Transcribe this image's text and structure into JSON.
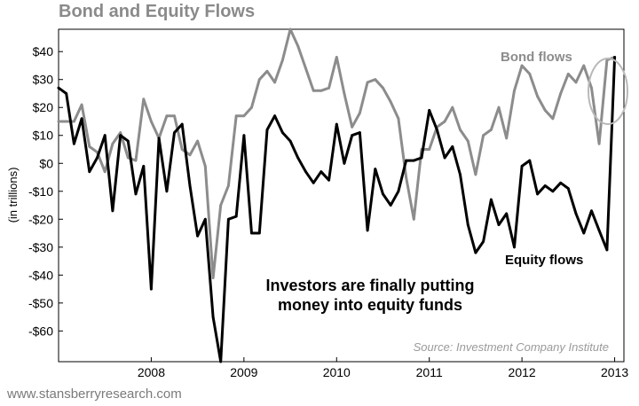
{
  "title": "Bond and Equity Flows",
  "footer": "www.stansberryresearch.com",
  "chart_data": {
    "type": "line",
    "title": "Bond and Equity Flows",
    "ylabel": "(in trillions)",
    "xlabel": "",
    "ylim": [
      -71,
      48
    ],
    "xlim": [
      2007.0,
      2013.1
    ],
    "y_ticks": [
      {
        "value": 40,
        "label": "$40"
      },
      {
        "value": 30,
        "label": "$30"
      },
      {
        "value": 20,
        "label": "$20"
      },
      {
        "value": 10,
        "label": "$10"
      },
      {
        "value": 0,
        "label": "$0"
      },
      {
        "value": -10,
        "label": "-$10"
      },
      {
        "value": -20,
        "label": "-$20"
      },
      {
        "value": -30,
        "label": "-$30"
      },
      {
        "value": -40,
        "label": "-$40"
      },
      {
        "value": -50,
        "label": "-$50"
      },
      {
        "value": -60,
        "label": "-$60"
      }
    ],
    "x_ticks": [
      {
        "value": 2008,
        "label": "2008"
      },
      {
        "value": 2009,
        "label": "2009"
      },
      {
        "value": 2010,
        "label": "2010"
      },
      {
        "value": 2011,
        "label": "2011"
      },
      {
        "value": 2012,
        "label": "2012"
      },
      {
        "value": 2013,
        "label": "2013"
      }
    ],
    "grid": false,
    "series": [
      {
        "name": "Bond flows",
        "color": "#8c8c8c",
        "x": [
          2007.0,
          2007.083,
          2007.167,
          2007.25,
          2007.333,
          2007.417,
          2007.5,
          2007.583,
          2007.667,
          2007.75,
          2007.833,
          2007.917,
          2008.0,
          2008.083,
          2008.167,
          2008.25,
          2008.333,
          2008.417,
          2008.5,
          2008.583,
          2008.667,
          2008.75,
          2008.833,
          2008.917,
          2009.0,
          2009.083,
          2009.167,
          2009.25,
          2009.333,
          2009.417,
          2009.5,
          2009.583,
          2009.667,
          2009.75,
          2009.833,
          2009.917,
          2010.0,
          2010.083,
          2010.167,
          2010.25,
          2010.333,
          2010.417,
          2010.5,
          2010.583,
          2010.667,
          2010.75,
          2010.833,
          2010.917,
          2011.0,
          2011.083,
          2011.167,
          2011.25,
          2011.333,
          2011.417,
          2011.5,
          2011.583,
          2011.667,
          2011.75,
          2011.833,
          2011.917,
          2012.0,
          2012.083,
          2012.167,
          2012.25,
          2012.333,
          2012.417,
          2012.5,
          2012.583,
          2012.667,
          2012.75,
          2012.833,
          2012.917,
          2013.0
        ],
        "values": [
          15,
          15,
          15,
          21,
          6,
          4,
          -3,
          7,
          11,
          2,
          1,
          23,
          15,
          9,
          17,
          17,
          5,
          3,
          8,
          -1,
          -41,
          -15,
          -8,
          17,
          17,
          20,
          30,
          33,
          29,
          37,
          48,
          42,
          34,
          26,
          26,
          27,
          38,
          25,
          13,
          18,
          29,
          30,
          27,
          22,
          16,
          -5,
          -20,
          5,
          5,
          13,
          15,
          20,
          12,
          8,
          -4,
          10,
          12,
          20,
          9,
          26,
          35,
          32,
          24,
          19,
          16,
          25,
          32,
          29,
          35,
          27,
          7,
          37,
          38
        ]
      },
      {
        "name": "Equity flows",
        "color": "#000000",
        "x": [
          2007.0,
          2007.083,
          2007.167,
          2007.25,
          2007.333,
          2007.417,
          2007.5,
          2007.583,
          2007.667,
          2007.75,
          2007.833,
          2007.917,
          2008.0,
          2008.083,
          2008.167,
          2008.25,
          2008.333,
          2008.417,
          2008.5,
          2008.583,
          2008.667,
          2008.75,
          2008.833,
          2008.917,
          2009.0,
          2009.083,
          2009.167,
          2009.25,
          2009.333,
          2009.417,
          2009.5,
          2009.583,
          2009.667,
          2009.75,
          2009.833,
          2009.917,
          2010.0,
          2010.083,
          2010.167,
          2010.25,
          2010.333,
          2010.417,
          2010.5,
          2010.583,
          2010.667,
          2010.75,
          2010.833,
          2010.917,
          2011.0,
          2011.083,
          2011.167,
          2011.25,
          2011.333,
          2011.417,
          2011.5,
          2011.583,
          2011.667,
          2011.75,
          2011.833,
          2011.917,
          2012.0,
          2012.083,
          2012.167,
          2012.25,
          2012.333,
          2012.417,
          2012.5,
          2012.583,
          2012.667,
          2012.75,
          2012.833,
          2012.917,
          2013.0
        ],
        "values": [
          27,
          25,
          7,
          16,
          -3,
          2,
          10,
          -17,
          10,
          8,
          -11,
          -1,
          -45,
          9,
          -10,
          11,
          14,
          -8,
          -26,
          -20,
          -55,
          -71,
          -20,
          -19,
          10,
          -25,
          -25,
          12,
          17,
          11,
          8,
          2,
          -3,
          -7,
          -3,
          -6,
          14,
          0,
          10,
          11,
          -24,
          -2,
          -11,
          -15,
          -10,
          1,
          1,
          2,
          19,
          12,
          2,
          6,
          -4,
          -22,
          -32,
          -28,
          -13,
          -22,
          -18,
          -30,
          -1,
          1,
          -11,
          -8,
          -10,
          -7,
          -9,
          -18,
          -25,
          -17,
          -24,
          -31,
          38
        ]
      }
    ],
    "labels": {
      "bond": "Bond flows",
      "equity": "Equity flows"
    },
    "annotation": {
      "line1": "Investors are finally putting",
      "line2": "money into equity funds"
    },
    "source": "Source: Investment Company Institute"
  }
}
